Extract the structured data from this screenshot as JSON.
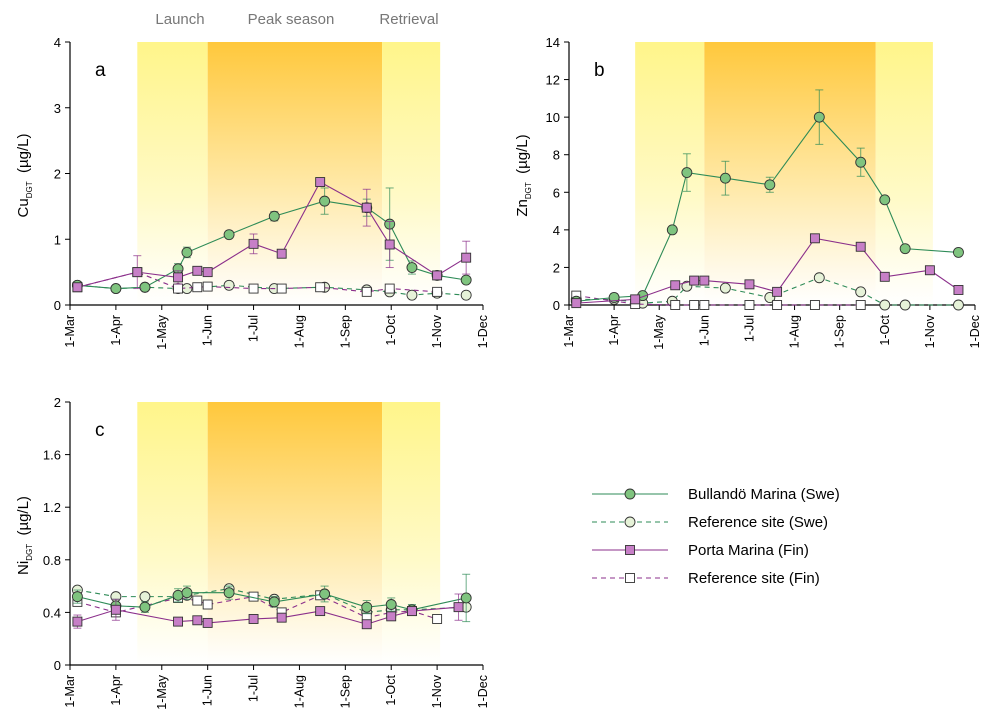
{
  "season_labels": [
    "Launch",
    "Peak season",
    "Retrieval"
  ],
  "month_ticks": [
    "1-Mar",
    "1-Apr",
    "1-May",
    "1-Jun",
    "1-Jul",
    "1-Aug",
    "1-Sep",
    "1-Oct",
    "1-Nov",
    "1-Dec"
  ],
  "legend": [
    {
      "label": "Bullandö Marina (Swe)",
      "color": "#2e8b57",
      "fill": "#7fc47f",
      "marker": "circle",
      "dash": false
    },
    {
      "label": "Reference site (Swe)",
      "color": "#2e8b57",
      "fill": "#e6f2d8",
      "marker": "circle",
      "dash": true
    },
    {
      "label": "Porta Marina (Fin)",
      "color": "#8b2f8b",
      "fill": "#c77fc7",
      "marker": "square",
      "dash": false
    },
    {
      "label": "Reference site (Fin)",
      "color": "#8b2f8b",
      "fill": "#ffffff",
      "marker": "square",
      "dash": true
    }
  ],
  "colors": {
    "launch_band": "#fff6a0",
    "peak_band_top": "#ffc83c",
    "peak_band_bottom": "#ffffff"
  },
  "chart_data": [
    {
      "type": "line",
      "panel": "a",
      "ylabel_main": "Cu",
      "ylabel_sub": "DGT",
      "ylabel_unit": "(µg/L)",
      "xlabel": "",
      "x_axis": "months 1-Mar to 1-Dec",
      "ylim": [
        0,
        4
      ],
      "yticks": [
        "0",
        "1",
        "2",
        "3",
        "4"
      ],
      "seasons": {
        "launch": [
          "15-Apr",
          "1-Jun"
        ],
        "peak": [
          "1-Jun",
          "25-Sep"
        ],
        "retrieval": [
          "25-Sep",
          "3-Nov"
        ]
      },
      "series": [
        {
          "name": "Bullandö Marina (Swe)",
          "points": [
            [
              "6-Mar",
              0.3
            ],
            [
              "1-Apr",
              0.25
            ],
            [
              "20-Apr",
              0.27
            ],
            [
              "12-May",
              0.55
            ],
            [
              "18-May",
              0.8
            ],
            [
              "15-Jun",
              1.07
            ],
            [
              "15-Jul",
              1.35
            ],
            [
              "18-Aug",
              1.58
            ],
            [
              "15-Sep",
              1.48
            ],
            [
              "30-Sep",
              1.23
            ],
            [
              "15-Oct",
              0.57
            ],
            [
              "1-Nov",
              0.45
            ],
            [
              "20-Nov",
              0.38
            ]
          ],
          "errors": [
            0.05,
            0.05,
            0.05,
            0.08,
            0.08,
            0.05,
            0.07,
            0.2,
            0.13,
            0.55,
            0.1,
            0.05,
            0.05
          ]
        },
        {
          "name": "Reference site (Swe)",
          "points": [
            [
              "6-Mar",
              0.3
            ],
            [
              "1-Apr",
              0.25
            ],
            [
              "20-Apr",
              0.27
            ],
            [
              "12-May",
              0.25
            ],
            [
              "18-May",
              0.25
            ],
            [
              "15-Jun",
              0.3
            ],
            [
              "15-Jul",
              0.25
            ],
            [
              "18-Aug",
              0.27
            ],
            [
              "15-Sep",
              0.23
            ],
            [
              "30-Sep",
              0.2
            ],
            [
              "15-Oct",
              0.15
            ],
            [
              "1-Nov",
              0.18
            ],
            [
              "20-Nov",
              0.15
            ]
          ],
          "errors": []
        },
        {
          "name": "Porta Marina (Fin)",
          "points": [
            [
              "6-Mar",
              0.27
            ],
            [
              "15-Apr",
              0.5
            ],
            [
              "12-May",
              0.42
            ],
            [
              "25-May",
              0.52
            ],
            [
              "1-Jun",
              0.5
            ],
            [
              "1-Jul",
              0.93
            ],
            [
              "20-Jul",
              0.78
            ],
            [
              "15-Aug",
              1.87
            ],
            [
              "15-Sep",
              1.48
            ],
            [
              "30-Sep",
              0.92
            ],
            [
              "1-Nov",
              0.45
            ],
            [
              "20-Nov",
              0.72
            ]
          ],
          "errors": [
            0.03,
            0.25,
            0.1,
            0.05,
            0.05,
            0.15,
            0.06,
            0.05,
            0.28,
            0.35,
            0.05,
            0.25
          ]
        },
        {
          "name": "Reference site (Fin)",
          "points": [
            [
              "6-Mar",
              0.27
            ],
            [
              "15-Apr",
              0.5
            ],
            [
              "12-May",
              0.25
            ],
            [
              "25-May",
              0.27
            ],
            [
              "1-Jun",
              0.28
            ],
            [
              "1-Jul",
              0.25
            ],
            [
              "20-Jul",
              0.25
            ],
            [
              "15-Aug",
              0.27
            ],
            [
              "15-Sep",
              0.2
            ],
            [
              "30-Sep",
              0.25
            ],
            [
              "1-Nov",
              0.2
            ]
          ],
          "errors": []
        }
      ]
    },
    {
      "type": "line",
      "panel": "b",
      "ylabel_main": "Zn",
      "ylabel_sub": "DGT",
      "ylabel_unit": "(µg/L)",
      "xlabel": "",
      "x_axis": "months 1-Mar to 1-Dec",
      "ylim": [
        0,
        14
      ],
      "yticks": [
        "0",
        "2",
        "4",
        "6",
        "8",
        "10",
        "12",
        "14"
      ],
      "seasons": {
        "launch": [
          "15-Apr",
          "1-Jun"
        ],
        "peak": [
          "1-Jun",
          "25-Sep"
        ],
        "retrieval": [
          "25-Sep",
          "3-Nov"
        ]
      },
      "series": [
        {
          "name": "Bullandö Marina (Swe)",
          "points": [
            [
              "6-Mar",
              0.2
            ],
            [
              "1-Apr",
              0.4
            ],
            [
              "20-Apr",
              0.5
            ],
            [
              "10-May",
              4.0
            ],
            [
              "20-May",
              7.05
            ],
            [
              "15-Jun",
              6.75
            ],
            [
              "15-Jul",
              6.4
            ],
            [
              "18-Aug",
              10.0
            ],
            [
              "15-Sep",
              7.6
            ],
            [
              "1-Oct",
              5.6
            ],
            [
              "15-Oct",
              3.0
            ],
            [
              "20-Nov",
              2.8
            ]
          ],
          "errors": [
            0.2,
            0.2,
            0.1,
            0.1,
            1.0,
            0.9,
            0.4,
            1.45,
            0.75,
            0.1,
            0.1,
            0.1
          ]
        },
        {
          "name": "Reference site (Swe)",
          "points": [
            [
              "6-Mar",
              0.3
            ],
            [
              "1-Apr",
              0.3
            ],
            [
              "20-Apr",
              0.1
            ],
            [
              "10-May",
              0.2
            ],
            [
              "20-May",
              1.0
            ],
            [
              "15-Jun",
              0.9
            ],
            [
              "15-Jul",
              0.4
            ],
            [
              "18-Aug",
              1.45
            ],
            [
              "15-Sep",
              0.7
            ],
            [
              "1-Oct",
              0.0
            ],
            [
              "15-Oct",
              0.0
            ],
            [
              "20-Nov",
              0.0
            ]
          ],
          "errors": []
        },
        {
          "name": "Porta Marina (Fin)",
          "points": [
            [
              "6-Mar",
              0.1
            ],
            [
              "15-Apr",
              0.3
            ],
            [
              "12-May",
              1.05
            ],
            [
              "25-May",
              1.3
            ],
            [
              "1-Jun",
              1.3
            ],
            [
              "1-Jul",
              1.1
            ],
            [
              "20-Jul",
              0.7
            ],
            [
              "15-Aug",
              3.55
            ],
            [
              "15-Sep",
              3.1
            ],
            [
              "1-Oct",
              1.5
            ],
            [
              "1-Nov",
              1.85
            ],
            [
              "20-Nov",
              0.8
            ]
          ],
          "errors": []
        },
        {
          "name": "Reference site (Fin)",
          "points": [
            [
              "6-Mar",
              0.5
            ],
            [
              "15-Apr",
              0.05
            ],
            [
              "12-May",
              0.0
            ],
            [
              "25-May",
              0.0
            ],
            [
              "1-Jun",
              0.0
            ],
            [
              "1-Jul",
              0.0
            ],
            [
              "20-Jul",
              0.0
            ],
            [
              "15-Aug",
              0.0
            ],
            [
              "15-Sep",
              0.0
            ]
          ],
          "errors": []
        }
      ]
    },
    {
      "type": "line",
      "panel": "c",
      "ylabel_main": "Ni",
      "ylabel_sub": "DGT",
      "ylabel_unit": "(µg/L)",
      "xlabel": "",
      "x_axis": "months 1-Mar to 1-Dec",
      "ylim": [
        0,
        2
      ],
      "yticks": [
        "0",
        "0.4",
        "0.8",
        "1.2",
        "1.6",
        "2"
      ],
      "seasons": {
        "launch": [
          "15-Apr",
          "1-Jun"
        ],
        "peak": [
          "1-Jun",
          "25-Sep"
        ],
        "retrieval": [
          "25-Sep",
          "3-Nov"
        ]
      },
      "series": [
        {
          "name": "Bullandö Marina (Swe)",
          "points": [
            [
              "6-Mar",
              0.52
            ],
            [
              "1-Apr",
              0.45
            ],
            [
              "20-Apr",
              0.44
            ],
            [
              "12-May",
              0.53
            ],
            [
              "18-May",
              0.55
            ],
            [
              "15-Jun",
              0.55
            ],
            [
              "15-Jul",
              0.48
            ],
            [
              "18-Aug",
              0.54
            ],
            [
              "15-Sep",
              0.44
            ],
            [
              "1-Oct",
              0.46
            ],
            [
              "15-Oct",
              0.42
            ],
            [
              "20-Nov",
              0.51
            ]
          ],
          "errors": [
            0.05,
            0.05,
            0.04,
            0.05,
            0.05,
            0.05,
            0.04,
            0.06,
            0.05,
            0.05,
            0.04,
            0.18
          ]
        },
        {
          "name": "Reference site (Swe)",
          "points": [
            [
              "6-Mar",
              0.57
            ],
            [
              "1-Apr",
              0.52
            ],
            [
              "20-Apr",
              0.52
            ],
            [
              "12-May",
              0.52
            ],
            [
              "18-May",
              0.53
            ],
            [
              "15-Jun",
              0.58
            ],
            [
              "15-Jul",
              0.5
            ],
            [
              "18-Aug",
              0.54
            ],
            [
              "15-Sep",
              0.4
            ],
            [
              "1-Oct",
              0.42
            ],
            [
              "15-Oct",
              0.42
            ],
            [
              "20-Nov",
              0.44
            ]
          ],
          "errors": []
        },
        {
          "name": "Porta Marina (Fin)",
          "points": [
            [
              "6-Mar",
              0.33
            ],
            [
              "1-Apr",
              0.42
            ],
            [
              "12-May",
              0.33
            ],
            [
              "25-May",
              0.34
            ],
            [
              "1-Jun",
              0.32
            ],
            [
              "1-Jul",
              0.35
            ],
            [
              "20-Jul",
              0.36
            ],
            [
              "15-Aug",
              0.41
            ],
            [
              "15-Sep",
              0.31
            ],
            [
              "1-Oct",
              0.37
            ],
            [
              "15-Oct",
              0.41
            ],
            [
              "15-Nov",
              0.44
            ]
          ],
          "errors": [
            0.05,
            0.08,
            0.03,
            0.03,
            0.03,
            0.03,
            0.03,
            0.03,
            0.03,
            0.03,
            0.03,
            0.1
          ]
        },
        {
          "name": "Reference site (Fin)",
          "points": [
            [
              "6-Mar",
              0.48
            ],
            [
              "1-Apr",
              0.4
            ],
            [
              "12-May",
              0.51
            ],
            [
              "25-May",
              0.49
            ],
            [
              "1-Jun",
              0.46
            ],
            [
              "1-Jul",
              0.52
            ],
            [
              "20-Jul",
              0.4
            ],
            [
              "15-Aug",
              0.53
            ],
            [
              "15-Sep",
              0.36
            ],
            [
              "1-Oct",
              0.4
            ],
            [
              "15-Oct",
              0.41
            ],
            [
              "1-Nov",
              0.35
            ]
          ],
          "errors": []
        }
      ]
    }
  ]
}
